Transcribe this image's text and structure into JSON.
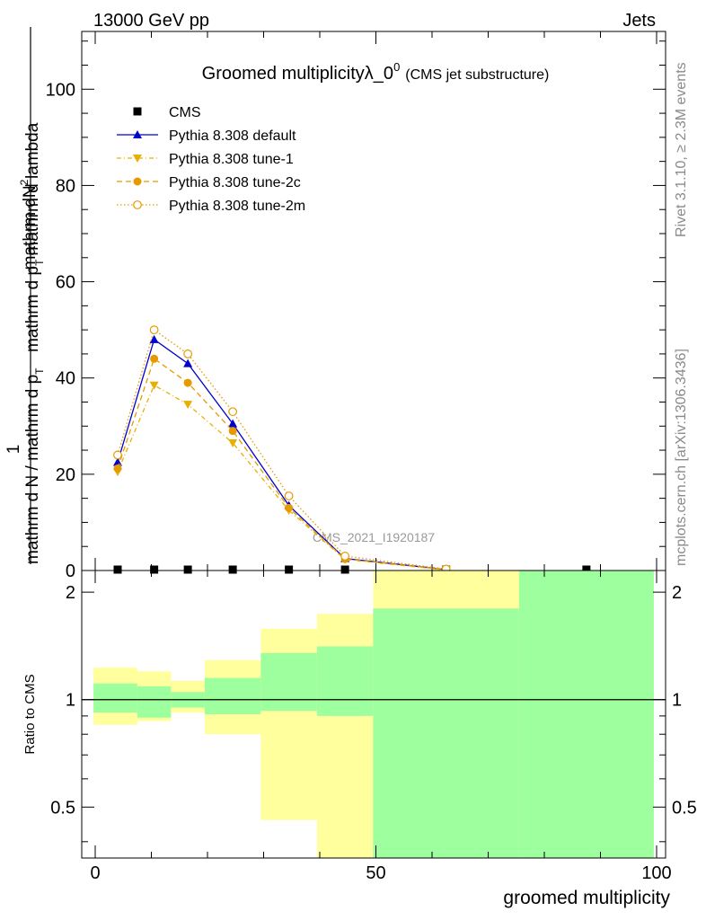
{
  "header": {
    "left": "13000 GeV pp",
    "right": "Jets"
  },
  "side_labels": {
    "rivet": "Rivet 3.1.10, ≥ 2.3M events",
    "mcplots": "mcplots.cern.ch [arXiv:1306.3436]"
  },
  "chart_data": [
    {
      "type": "line",
      "title": "Groomed multiplicityλ_0",
      "title_sup": "0",
      "subtitle": "(CMS jet substructure)",
      "watermark": "CMS_2021_I1920187",
      "ylabel_numerator": "mathrm dN",
      "ylabel_numerator_sup": "2",
      "ylabel_numerator_prefix": "1",
      "ylabel_denominator": "mathrm d N / mathrm d p",
      "ylabel_denominator_sub": "T",
      "ylabel_denominator_tail": "mathrm d p",
      "ylabel_denominator_tail_sub": "T",
      "ylabel_denominator_end": "mathrm d lambda",
      "xlim": [
        -2,
        100
      ],
      "ylim": [
        0,
        112
      ],
      "y_ticks": [
        0,
        20,
        40,
        60,
        80,
        100
      ],
      "y_tick_labels": [
        "0",
        "20",
        "40",
        "60",
        "80",
        "100"
      ],
      "legend_position": "top-left",
      "legend": [
        "CMS",
        "Pythia 8.308 default",
        "Pythia 8.308 tune-1",
        "Pythia 8.308 tune-2c",
        "Pythia 8.308 tune-2m"
      ],
      "x": [
        4,
        10.5,
        16.5,
        24.5,
        34.5,
        44.5,
        62.5,
        87.5
      ],
      "series": [
        {
          "name": "CMS",
          "color": "#000000",
          "marker": "square",
          "values": [
            0.1,
            0.1,
            0.1,
            0.1,
            0.1,
            0.1,
            0.1,
            0.1
          ]
        },
        {
          "name": "Pythia 8.308 default",
          "color": "#0000cc",
          "marker": "triangle-up",
          "dash": "",
          "values": [
            22.5,
            48,
            43,
            30.5,
            13.5,
            2.5,
            0.2,
            null
          ]
        },
        {
          "name": "Pythia 8.308 tune-1",
          "color": "#e8b000",
          "marker": "triangle-down",
          "dash": "5,3,1,3",
          "values": [
            20.5,
            38.5,
            34.5,
            26.5,
            12.5,
            2.3,
            0.1,
            null
          ]
        },
        {
          "name": "Pythia 8.308 tune-2c",
          "color": "#e69a00",
          "marker": "circle",
          "dash": "6,4",
          "values": [
            21.2,
            44,
            39,
            29,
            13,
            2.4,
            0.2,
            null
          ]
        },
        {
          "name": "Pythia 8.308 tune-2m",
          "color": "#e69a00",
          "marker": "circle-open",
          "dash": "1.5,2.5",
          "values": [
            24,
            50,
            45,
            33,
            15.5,
            3,
            0.3,
            null
          ]
        }
      ]
    },
    {
      "type": "area",
      "ylabel": "Ratio to CMS",
      "xlabel": "groomed multiplicity",
      "xlim": [
        -2,
        100
      ],
      "ylim": [
        0.36,
        2.3
      ],
      "y_scale": "log",
      "y_ticks": [
        0.5,
        1,
        2
      ],
      "y_tick_labels": [
        "0.5",
        "1",
        "2"
      ],
      "x_ticks": [
        0,
        50,
        100
      ],
      "x_tick_labels": [
        "0",
        "50",
        "100"
      ],
      "reference_line": 1,
      "bands": [
        {
          "x0": -0.3,
          "x1": 7.5,
          "inner": [
            0.92,
            1.11
          ],
          "outer": [
            0.85,
            1.23
          ]
        },
        {
          "x0": 7.5,
          "x1": 13.5,
          "inner": [
            0.89,
            1.09
          ],
          "outer": [
            0.87,
            1.2
          ]
        },
        {
          "x0": 13.5,
          "x1": 19.5,
          "inner": [
            0.95,
            1.05
          ],
          "outer": [
            0.92,
            1.13
          ]
        },
        {
          "x0": 19.5,
          "x1": 29.5,
          "inner": [
            0.91,
            1.15
          ],
          "outer": [
            0.8,
            1.29
          ]
        },
        {
          "x0": 29.5,
          "x1": 39.5,
          "inner": [
            0.93,
            1.35
          ],
          "outer": [
            0.46,
            1.58
          ]
        },
        {
          "x0": 39.5,
          "x1": 49.5,
          "inner": [
            0.9,
            1.41
          ],
          "outer": [
            0.36,
            1.74
          ]
        },
        {
          "x0": 49.5,
          "x1": 75.5,
          "inner": [
            0.36,
            1.8
          ],
          "outer": [
            0.36,
            2.3
          ]
        },
        {
          "x0": 75.5,
          "x1": 99.5,
          "inner": [
            0.36,
            2.3
          ],
          "outer": [
            0.36,
            2.3
          ]
        }
      ],
      "inner_color": "#9dff9d",
      "outer_color": "#ffff9d"
    }
  ]
}
